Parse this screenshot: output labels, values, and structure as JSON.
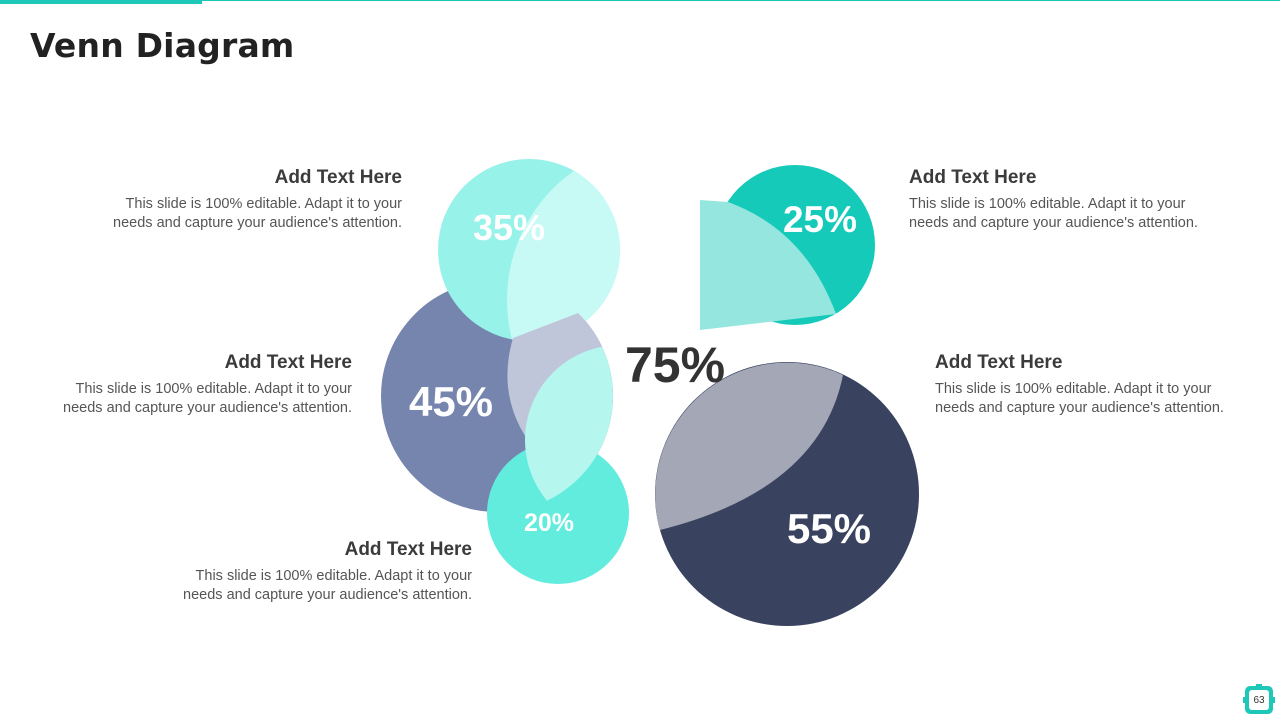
{
  "slide": {
    "title": "Venn Diagram",
    "page_number": "63"
  },
  "blocks": [
    {
      "heading": "Add Text Here",
      "body_line1": "This slide is 100% editable. Adapt it to your",
      "body_line2": "needs and capture your audience's attention."
    },
    {
      "heading": "Add Text Here",
      "body_line1": "This slide is 100% editable. Adapt it to your",
      "body_line2": "needs and capture your audience's attention."
    },
    {
      "heading": "Add Text Here",
      "body_line1": "This slide is 100% editable. Adapt it to your",
      "body_line2": "needs and capture your audience's attention."
    },
    {
      "heading": "Add Text Here",
      "body_line1": "This slide is 100% editable. Adapt it to your",
      "body_line2": "needs and capture your audience's attention."
    },
    {
      "heading": "Add Text Here",
      "body_line1": "This slide is 100% editable. Adapt it to your",
      "body_line2": "needs and capture your audience's attention."
    }
  ],
  "circles": {
    "top_left": {
      "label": "35%",
      "color": "#97f2e9"
    },
    "mid_left": {
      "label": "45%",
      "color": "#7585ad"
    },
    "bottom_small": {
      "label": "20%",
      "color": "#62ecde"
    },
    "top_right": {
      "label": "25%",
      "color": "#16cab9"
    },
    "big_right": {
      "label": "55%",
      "color": "#39425f"
    }
  },
  "center_label": "75%",
  "colors": {
    "accent": "#1ec8b8",
    "overlap_light": "#c8faf5",
    "overlap_gray": "#c0c6da",
    "overlap_teal_light": "#b5f6ef",
    "overlap_top_right": "#95e6de",
    "overlap_big": "#a3a7b6"
  }
}
